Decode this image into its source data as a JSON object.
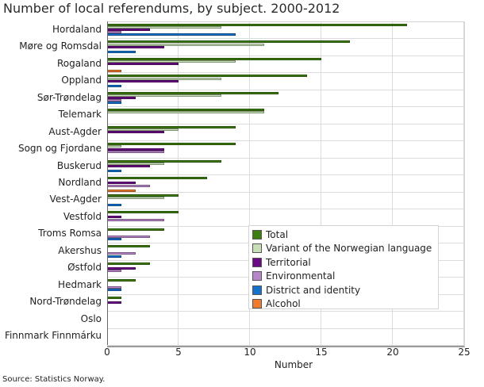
{
  "title": "Number of local referendums, by subject. 2000-2012",
  "source": "Source: Statistics Norway.",
  "chart_data": {
    "type": "bar",
    "orientation": "horizontal",
    "title": "Number of local referendums, by subject. 2000-2012",
    "xlabel": "Number",
    "ylabel": "",
    "xlim": [
      0,
      25
    ],
    "xticks": [
      0,
      5,
      10,
      15,
      20,
      25
    ],
    "grid": true,
    "legend_position": "inside lower right",
    "categories": [
      "Hordaland",
      "Møre og Romsdal",
      "Rogaland",
      "Oppland",
      "Sør-Trøndelag",
      "Telemark",
      "Aust-Agder",
      "Sogn og Fjordane",
      "Buskerud",
      "Nordland",
      "Vest-Agder",
      "Vestfold",
      "Troms Romsa",
      "Akershus",
      "Østfold",
      "Hedmark",
      "Nord-Trøndelag",
      "Oslo",
      "Finnmark Finnmárku"
    ],
    "series": [
      {
        "name": "Total",
        "color": "#3d7d0e",
        "values": [
          21,
          17,
          15,
          14,
          12,
          11,
          9,
          9,
          8,
          7,
          5,
          5,
          4,
          3,
          3,
          2,
          1,
          0,
          0
        ]
      },
      {
        "name": "Variant of the Norwegian language",
        "color": "#c6dfb4",
        "values": [
          8,
          11,
          9,
          8,
          8,
          11,
          5,
          1,
          4,
          0,
          4,
          0,
          0,
          0,
          0,
          0,
          0,
          0,
          0
        ]
      },
      {
        "name": "Territorial",
        "color": "#6a0a85",
        "values": [
          3,
          4,
          5,
          5,
          2,
          0,
          4,
          4,
          3,
          2,
          0,
          1,
          0,
          0,
          2,
          0,
          1,
          0,
          0
        ]
      },
      {
        "name": "Environmental",
        "color": "#b887c9",
        "values": [
          1,
          0,
          0,
          0,
          1,
          0,
          0,
          4,
          0,
          3,
          0,
          4,
          3,
          2,
          1,
          1,
          0,
          0,
          0
        ]
      },
      {
        "name": "District and identity",
        "color": "#1673cc",
        "values": [
          9,
          2,
          0,
          1,
          1,
          0,
          0,
          0,
          1,
          0,
          1,
          0,
          1,
          1,
          0,
          1,
          0,
          0,
          0
        ]
      },
      {
        "name": "Alcohol",
        "color": "#ee7a2c",
        "values": [
          0,
          0,
          1,
          0,
          0,
          0,
          0,
          0,
          0,
          2,
          0,
          0,
          0,
          0,
          0,
          0,
          0,
          0,
          0
        ]
      }
    ]
  }
}
